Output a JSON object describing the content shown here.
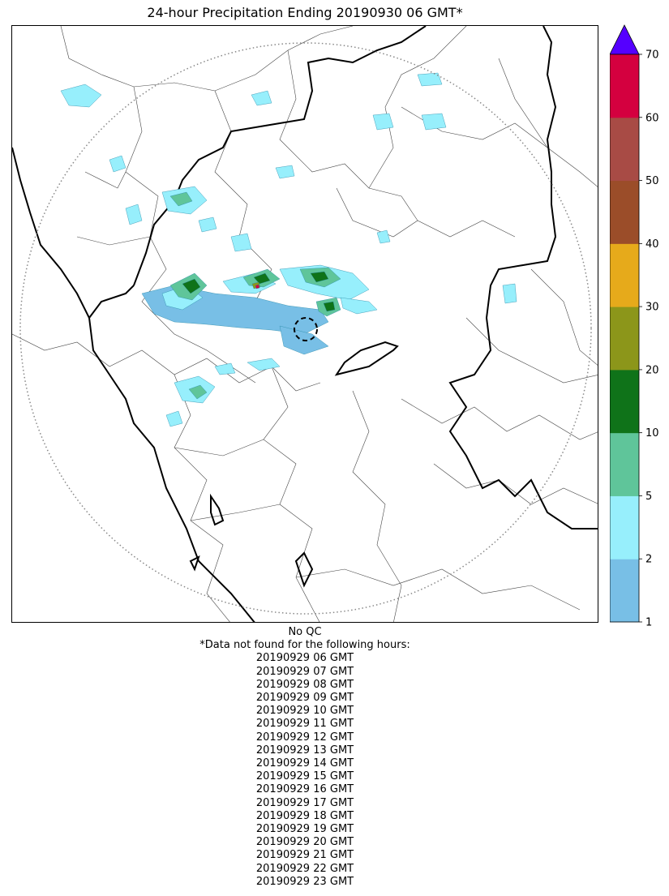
{
  "title": "24-hour Precipitation Ending 20190930 06 GMT*",
  "qc_label": "No QC",
  "missing_note": "*Data not found for the following hours:",
  "missing_hours": [
    "20190929 06 GMT",
    "20190929 07 GMT",
    "20190929 08 GMT",
    "20190929 09 GMT",
    "20190929 10 GMT",
    "20190929 11 GMT",
    "20190929 12 GMT",
    "20190929 13 GMT",
    "20190929 14 GMT",
    "20190929 15 GMT",
    "20190929 16 GMT",
    "20190929 17 GMT",
    "20190929 18 GMT",
    "20190929 19 GMT",
    "20190929 20 GMT",
    "20190929 21 GMT",
    "20190929 22 GMT",
    "20190929 23 GMT"
  ],
  "colorbar": {
    "levels": [
      "1",
      "2",
      "5",
      "10",
      "20",
      "30",
      "40",
      "50",
      "60",
      "70"
    ],
    "colors": [
      "#78bfe6",
      "#97effc",
      "#5fc59a",
      "#0f7319",
      "#8c961a",
      "#e6aa1b",
      "#9b4d29",
      "#a84b45",
      "#d4003f"
    ],
    "extend_color": "#5500ff"
  }
}
